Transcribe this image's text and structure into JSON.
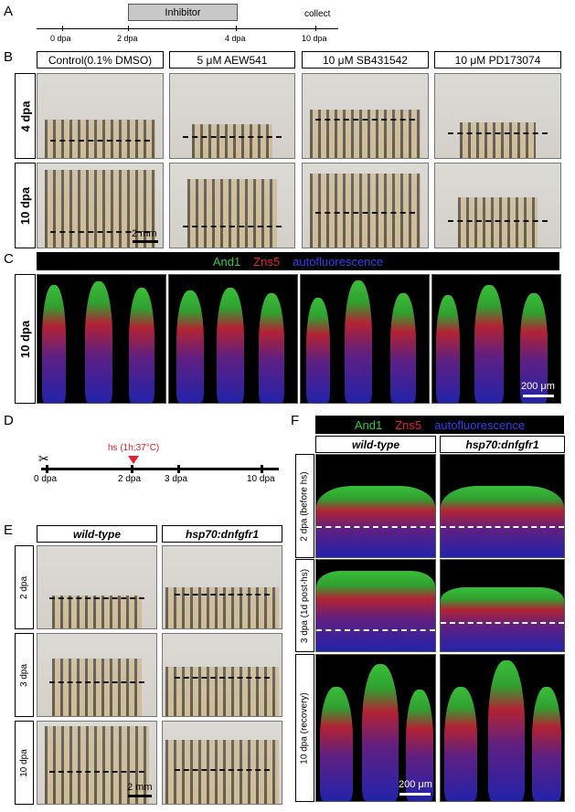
{
  "panels": {
    "A": "A",
    "B": "B",
    "C": "C",
    "D": "D",
    "E": "E",
    "F": "F"
  },
  "panelA": {
    "inhibitor": "Inhibitor",
    "collect": "collect",
    "ticks": [
      "0 dpa",
      "2 dpa",
      "4 dpa",
      "10 dpa"
    ]
  },
  "panelB": {
    "columns": [
      "Control(0.1% DMSO)",
      "5 μM  AEW541",
      "10 μM  SB431542",
      "10 μM  PD173074"
    ],
    "rows": [
      "4 dpa",
      "10 dpa"
    ],
    "scale": "2 mm"
  },
  "panelC": {
    "legend": {
      "green": "And1",
      "red": "Zns5",
      "blue": "autofluorescence"
    },
    "row": "10 dpa",
    "scale": "200 μm"
  },
  "panelD": {
    "hs": "hs (1h;37°C)",
    "ticks": [
      "0 dpa",
      "2 dpa",
      "3 dpa",
      "10 dpa"
    ],
    "scissors": "✂"
  },
  "panelE": {
    "columns": [
      "wild-type",
      "hsp70:dnfgfr1"
    ],
    "rows": [
      "2 dpa",
      "3 dpa",
      "10 dpa"
    ],
    "scale": "2 mm"
  },
  "panelF": {
    "legend": {
      "green": "And1",
      "red": "Zns5",
      "blue": "autofluorescence"
    },
    "columns": [
      "wild-type",
      "hsp70:dnfgfr1"
    ],
    "rows": [
      "2 dpa (before hs)",
      "3 dpa (1d post-hs)",
      "10 dpa (recovery)"
    ],
    "scale": "200 μm"
  },
  "colors": {
    "green": "#2ecc40",
    "red": "#e8202a",
    "blue": "#2a2ad8",
    "arrow": "#e8202a"
  }
}
